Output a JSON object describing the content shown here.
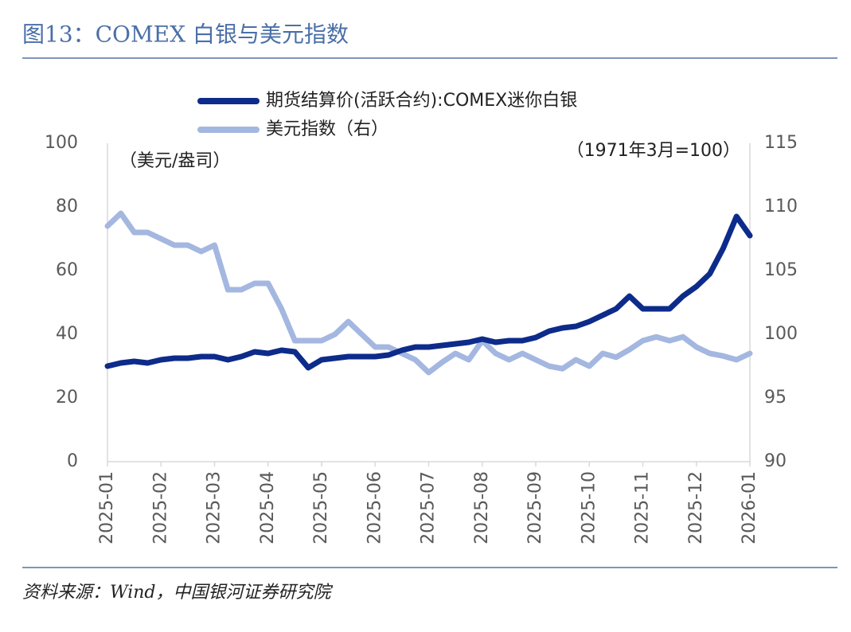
{
  "chart_data": {
    "type": "line",
    "title": "图13：COMEX 白银与美元指数",
    "y_label": "（美元/盎司）",
    "y2_label": "（1971年3月=100）",
    "source": "资料来源：Wind，中国银河证券研究院",
    "categories": [
      "2025-01",
      null,
      null,
      null,
      "2025-02",
      null,
      null,
      null,
      "2025-03",
      null,
      null,
      null,
      "2025-04",
      null,
      null,
      null,
      "2025-05",
      null,
      null,
      null,
      "2025-06",
      null,
      null,
      null,
      "2025-07",
      null,
      null,
      null,
      "2025-08",
      null,
      null,
      null,
      "2025-09",
      null,
      null,
      null,
      "2025-10",
      null,
      null,
      null,
      "2025-11",
      null,
      null,
      null,
      "2025-12",
      null,
      null,
      null,
      "2026-01"
    ],
    "series": [
      {
        "name": "期货结算价(活跃合约):COMEX迷你白银",
        "color": "#0d2b8a",
        "axis": "y",
        "values": [
          30,
          31,
          31.5,
          31,
          32,
          32.5,
          32.5,
          33,
          33,
          32,
          33,
          34.5,
          34,
          35,
          34.5,
          29.5,
          32,
          32.5,
          33,
          33,
          33,
          33.5,
          35,
          36,
          36,
          36.5,
          37,
          37.5,
          38.5,
          37.5,
          38,
          38,
          39,
          41,
          42,
          42.5,
          44,
          46,
          48,
          52,
          48,
          48,
          48,
          52,
          55,
          59,
          67,
          77,
          71
        ]
      },
      {
        "name": "美元指数（右）",
        "color": "#a4b7e0",
        "axis": "y2",
        "values": [
          108.5,
          109.5,
          108,
          108,
          107.5,
          107,
          107,
          106.5,
          107,
          103.5,
          103.5,
          104,
          104,
          102,
          99.5,
          99.5,
          99.5,
          100,
          101,
          100,
          99,
          99,
          98.5,
          98,
          97,
          97.8,
          98.5,
          98,
          99.5,
          98.5,
          98,
          98.5,
          98,
          97.5,
          97.3,
          98,
          97.5,
          98.5,
          98.2,
          98.8,
          99.5,
          99.8,
          99.5,
          99.8,
          99,
          98.5,
          98.3,
          98,
          98.5
        ]
      }
    ],
    "ylim": [
      0,
      100
    ],
    "yticks": [
      0,
      20,
      40,
      60,
      80,
      100
    ],
    "y2lim": [
      90,
      115
    ],
    "y2ticks": [
      90,
      95,
      100,
      105,
      110,
      115
    ]
  }
}
